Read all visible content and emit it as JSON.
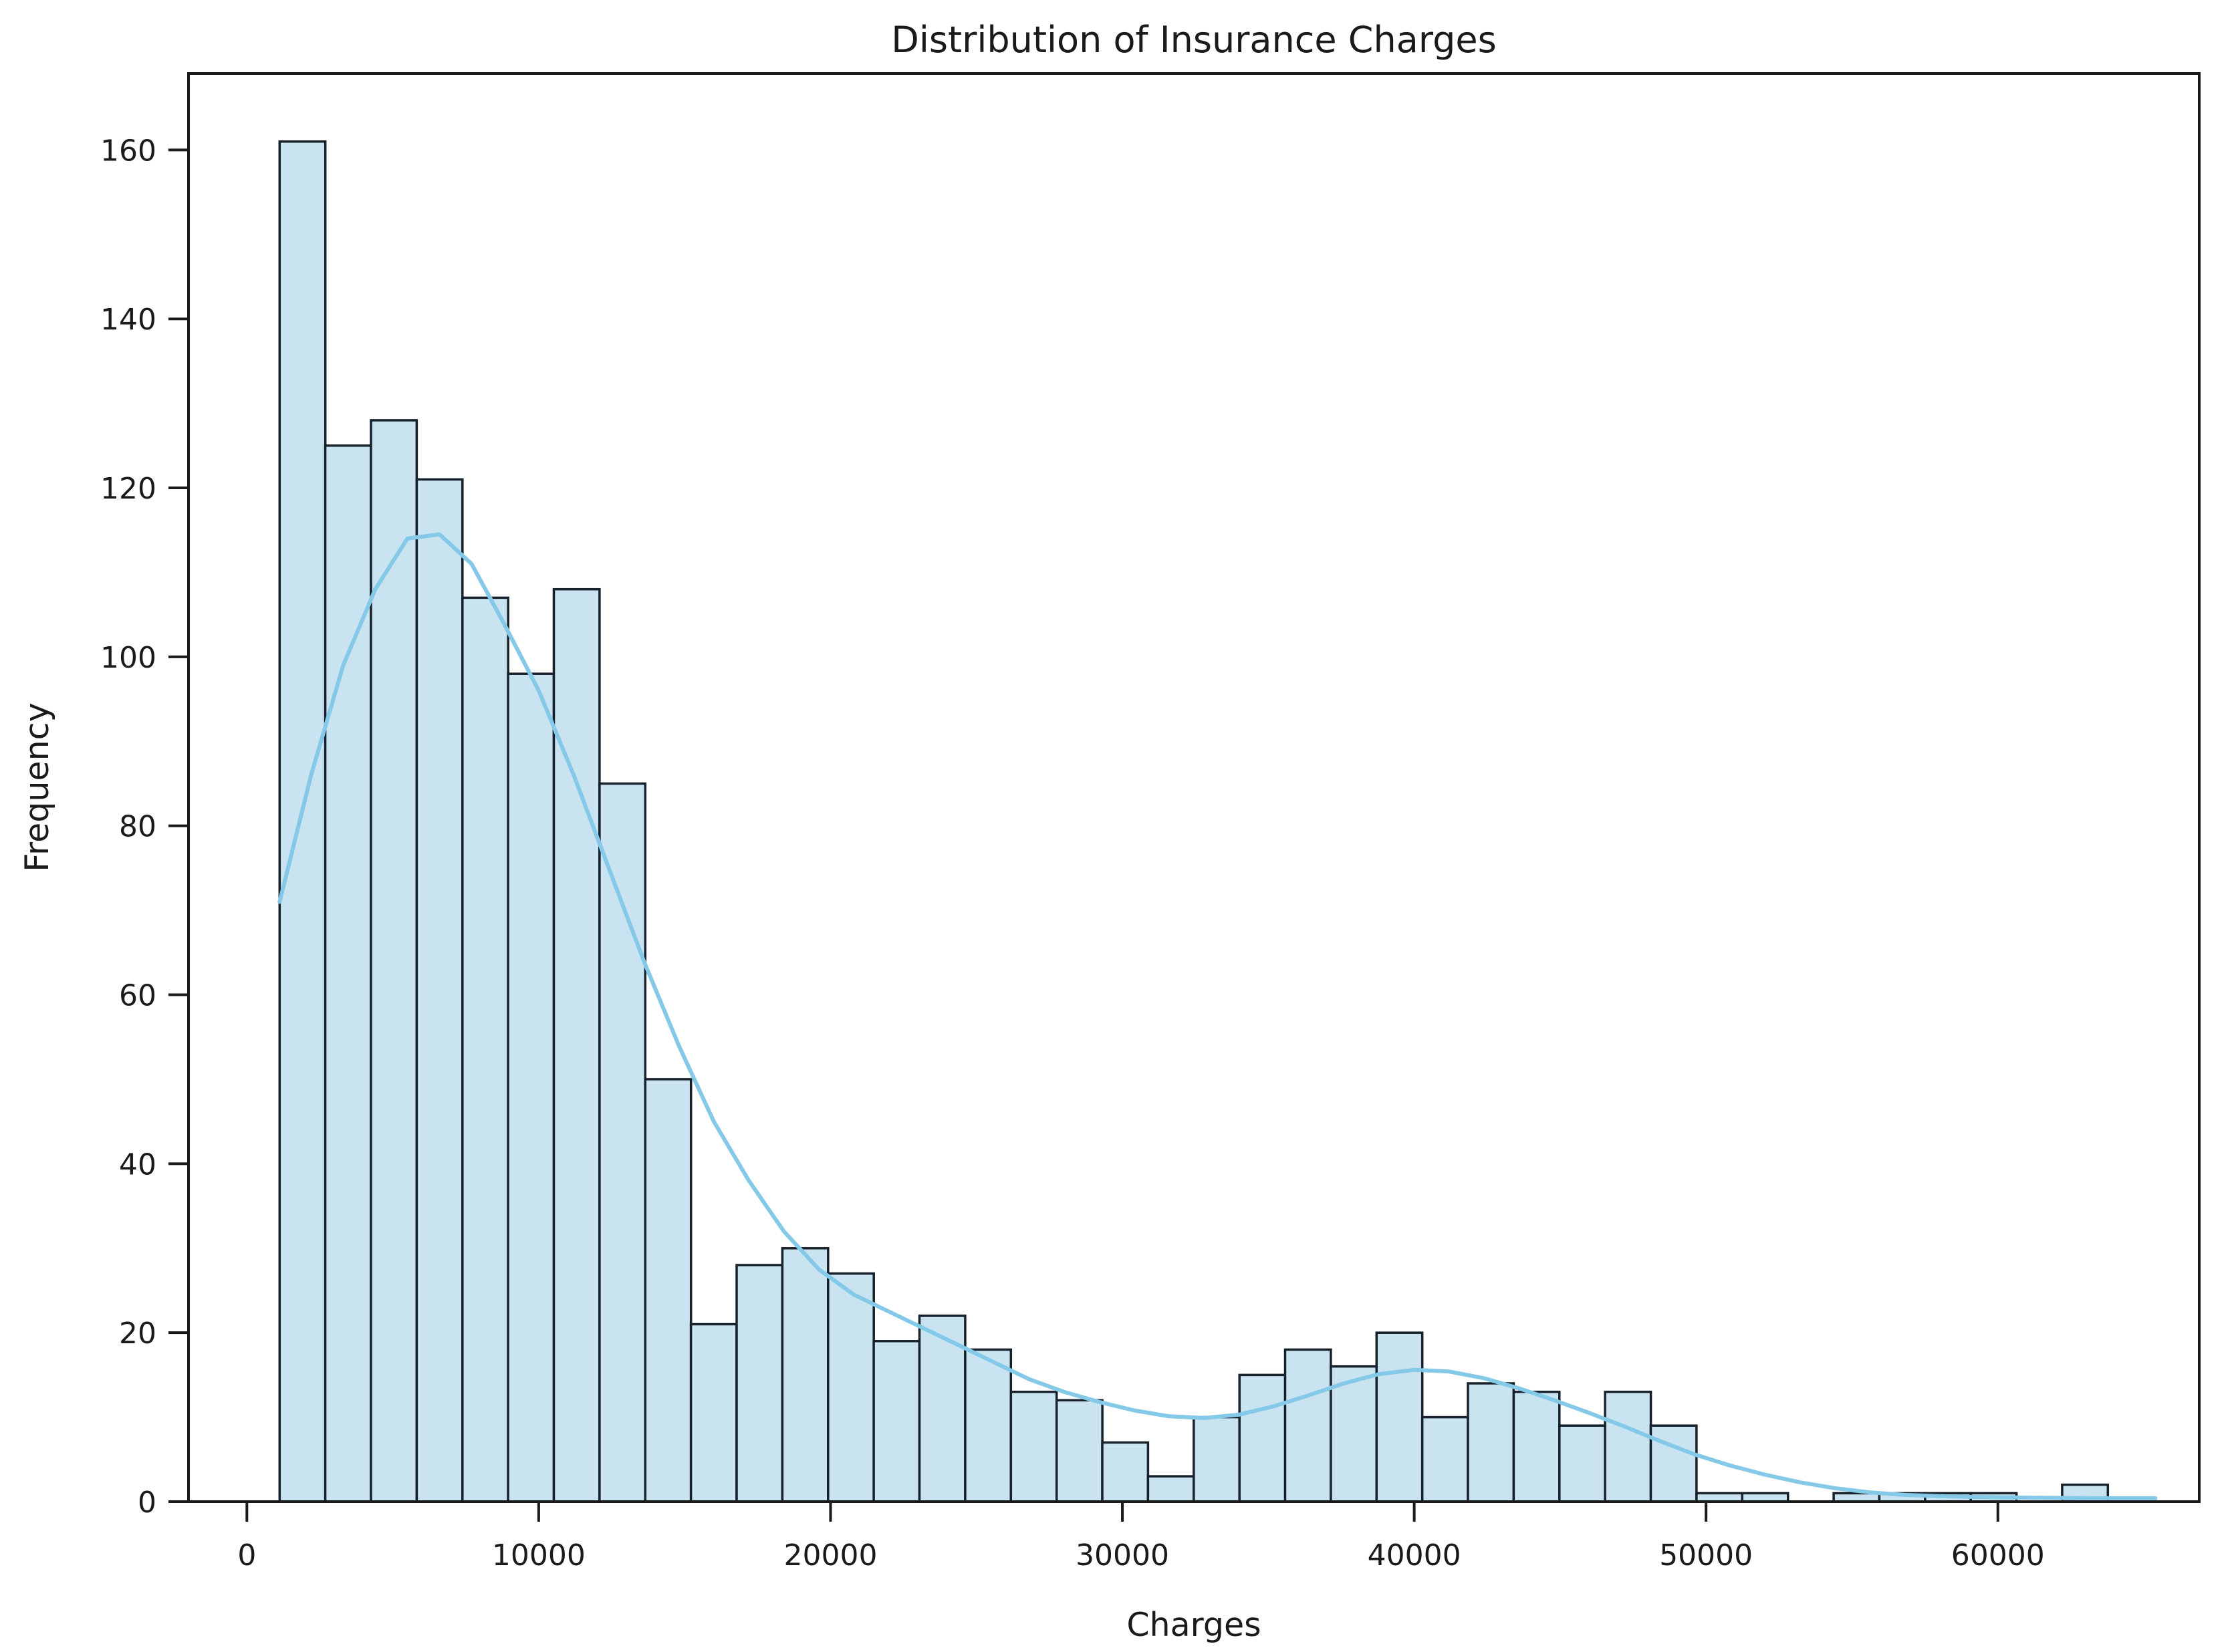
{
  "chart_data": {
    "type": "histogram",
    "title": "Distribution of Insurance Charges",
    "xlabel": "Charges",
    "ylabel": "Frequency",
    "x_ticks": [
      0,
      10000,
      20000,
      30000,
      40000,
      50000,
      60000
    ],
    "y_ticks": [
      0,
      20,
      40,
      60,
      80,
      100,
      120,
      140,
      160
    ],
    "xlim": [
      -2000,
      66900
    ],
    "ylim": [
      0,
      169.05
    ],
    "grid": false,
    "legend": "none",
    "bin_start": 1121,
    "bin_width": 1566.2,
    "counts": [
      161,
      125,
      128,
      121,
      107,
      98,
      108,
      85,
      50,
      21,
      28,
      30,
      27,
      19,
      22,
      18,
      13,
      12,
      7,
      3,
      10,
      15,
      18,
      16,
      20,
      10,
      14,
      13,
      9,
      13,
      9,
      1,
      1,
      0,
      1,
      1,
      1,
      1,
      0,
      2
    ],
    "kde_overlay": [
      [
        1121,
        71
      ],
      [
        2200,
        86
      ],
      [
        3300,
        99
      ],
      [
        4400,
        108
      ],
      [
        5500,
        114
      ],
      [
        6600,
        114.5
      ],
      [
        7700,
        111
      ],
      [
        8800,
        104
      ],
      [
        10000,
        96
      ],
      [
        11200,
        86
      ],
      [
        12400,
        75
      ],
      [
        13600,
        64
      ],
      [
        14800,
        54
      ],
      [
        16000,
        45
      ],
      [
        17200,
        38
      ],
      [
        18400,
        32
      ],
      [
        19600,
        27.5
      ],
      [
        20800,
        24.5
      ],
      [
        22000,
        22.5
      ],
      [
        23200,
        20.5
      ],
      [
        24400,
        18.5
      ],
      [
        25600,
        16.5
      ],
      [
        26800,
        14.5
      ],
      [
        28000,
        13
      ],
      [
        29200,
        11.8
      ],
      [
        30400,
        10.8
      ],
      [
        31600,
        10.1
      ],
      [
        32800,
        9.9
      ],
      [
        34000,
        10.3
      ],
      [
        35200,
        11.3
      ],
      [
        36400,
        12.6
      ],
      [
        37600,
        14
      ],
      [
        38800,
        15.1
      ],
      [
        40000,
        15.6
      ],
      [
        41200,
        15.4
      ],
      [
        42400,
        14.6
      ],
      [
        43600,
        13.4
      ],
      [
        44800,
        12
      ],
      [
        46000,
        10.5
      ],
      [
        47200,
        8.9
      ],
      [
        48400,
        7.2
      ],
      [
        49600,
        5.6
      ],
      [
        50800,
        4.3
      ],
      [
        52000,
        3.2
      ],
      [
        53200,
        2.3
      ],
      [
        54400,
        1.6
      ],
      [
        55600,
        1.1
      ],
      [
        56800,
        0.8
      ],
      [
        58000,
        0.65
      ],
      [
        59200,
        0.55
      ],
      [
        60400,
        0.5
      ],
      [
        61600,
        0.45
      ],
      [
        62800,
        0.42
      ],
      [
        64000,
        0.4
      ],
      [
        65400,
        0.4
      ]
    ],
    "colors": {
      "bar_fill": "#c9e3f0",
      "bar_edge": "#16212b",
      "kde_line": "#85c9e8",
      "spine": "#1a1a1a",
      "text": "#1a1a1a",
      "background": "#ffffff"
    }
  }
}
